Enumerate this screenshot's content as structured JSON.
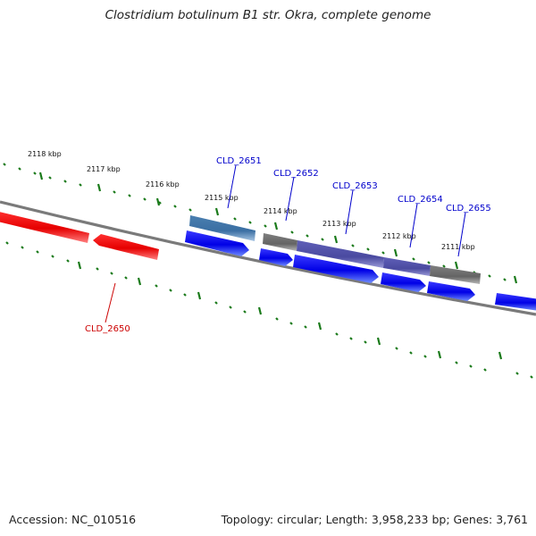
{
  "title": "Clostridium botulinum B1 str. Okra, complete genome",
  "footer": {
    "accession": "Accession: NC_010516",
    "topology": "Topology: circular; Length: 3,958,233 bp; Genes: 3,761"
  },
  "colors": {
    "forward_gene": "#0000ee",
    "reverse_gene": "#ee0000",
    "backbone": "#808080",
    "ticks": "#1a7a1a",
    "label_forward": "#0000cc",
    "label_reverse": "#cc0000"
  },
  "scale_labels": [
    "2118 kbp",
    "2117 kbp",
    "2116 kbp",
    "2115 kbp",
    "2114 kbp",
    "2113 kbp",
    "2112 kbp",
    "2111 kbp"
  ],
  "gene_labels": [
    {
      "name": "CLD_2651",
      "strand": "forward"
    },
    {
      "name": "CLD_2652",
      "strand": "forward"
    },
    {
      "name": "CLD_2653",
      "strand": "forward"
    },
    {
      "name": "CLD_2654",
      "strand": "forward"
    },
    {
      "name": "CLD_2655",
      "strand": "forward"
    },
    {
      "name": "CLD_2650",
      "strand": "reverse"
    }
  ]
}
